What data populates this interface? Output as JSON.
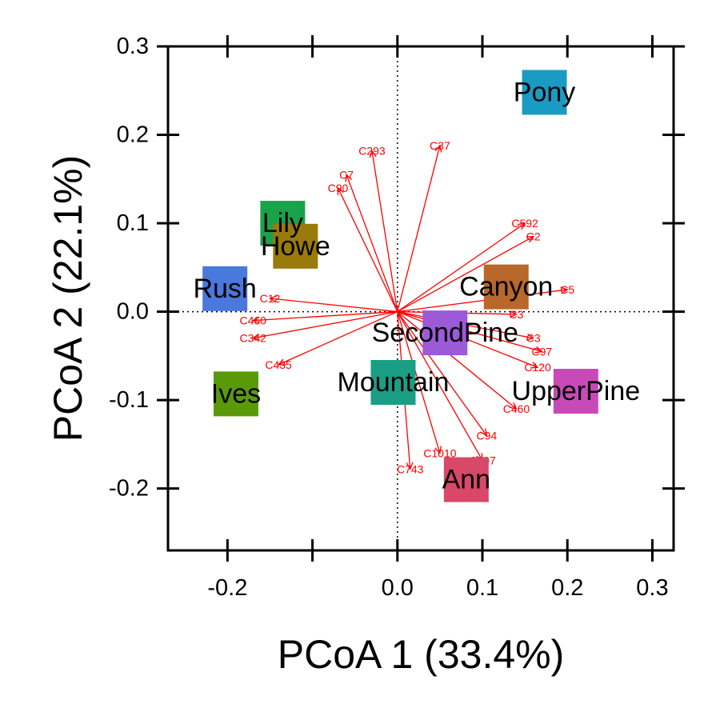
{
  "chart_data": {
    "type": "scatter",
    "title": "",
    "xlabel": "PCoA 1 (33.4%)",
    "ylabel": "PCoA 2 (22.1%)",
    "xlim": [
      -0.27,
      0.325
    ],
    "ylim": [
      -0.27,
      0.3
    ],
    "x_ticks": [
      -0.2,
      -0.1,
      0.0,
      0.1,
      0.2,
      0.3
    ],
    "x_tick_labels": [
      "-0.2",
      "",
      "0.0",
      "0.1",
      "0.2",
      "0.3"
    ],
    "y_ticks": [
      -0.2,
      -0.1,
      0.0,
      0.1,
      0.2,
      0.3
    ],
    "y_tick_labels": [
      "-0.2",
      "-0.1",
      "0.0",
      "0.1",
      "0.2",
      "0.3"
    ],
    "grid": false,
    "reference_lines": {
      "x": 0,
      "y": 0
    },
    "sites": [
      {
        "name": "Pony",
        "x": 0.173,
        "y": 0.248,
        "color": "#1a9bc4"
      },
      {
        "name": "Lily",
        "x": -0.135,
        "y": 0.1,
        "color": "#1aa24a"
      },
      {
        "name": "Howe",
        "x": -0.12,
        "y": 0.074,
        "color": "#9a7a0a"
      },
      {
        "name": "Rush",
        "x": -0.203,
        "y": 0.026,
        "color": "#4a78dc"
      },
      {
        "name": "Canyon",
        "x": 0.128,
        "y": 0.028,
        "color": "#b8682a"
      },
      {
        "name": "SecondPine",
        "x": 0.056,
        "y": -0.024,
        "color": "#9c5ad8"
      },
      {
        "name": "Mountain",
        "x": -0.005,
        "y": -0.08,
        "color": "#1a9e84"
      },
      {
        "name": "UpperPine",
        "x": 0.21,
        "y": -0.09,
        "color": "#c84ab8"
      },
      {
        "name": "Ives",
        "x": -0.19,
        "y": -0.093,
        "color": "#5a9a0a"
      },
      {
        "name": "Ann",
        "x": 0.081,
        "y": -0.19,
        "color": "#d84868"
      }
    ],
    "vectors": [
      {
        "label": "C293",
        "x": -0.03,
        "y": 0.182
      },
      {
        "label": "C37",
        "x": 0.05,
        "y": 0.188
      },
      {
        "label": "C7",
        "x": -0.06,
        "y": 0.155
      },
      {
        "label": "C90",
        "x": -0.07,
        "y": 0.14
      },
      {
        "label": "C592",
        "x": 0.15,
        "y": 0.1
      },
      {
        "label": "C2",
        "x": 0.16,
        "y": 0.085
      },
      {
        "label": "C5",
        "x": 0.2,
        "y": 0.025
      },
      {
        "label": "C3",
        "x": 0.14,
        "y": -0.003
      },
      {
        "label": "C3",
        "x": 0.16,
        "y": -0.03
      },
      {
        "label": "C97",
        "x": 0.17,
        "y": -0.045
      },
      {
        "label": "C120",
        "x": 0.165,
        "y": -0.063
      },
      {
        "label": "C460",
        "x": 0.14,
        "y": -0.11
      },
      {
        "label": "C94",
        "x": 0.105,
        "y": -0.14
      },
      {
        "label": "C307",
        "x": 0.1,
        "y": -0.168
      },
      {
        "label": "C1010",
        "x": 0.05,
        "y": -0.16
      },
      {
        "label": "C743",
        "x": 0.015,
        "y": -0.178
      },
      {
        "label": "C460",
        "x": -0.17,
        "y": -0.01
      },
      {
        "label": "C342",
        "x": -0.17,
        "y": -0.03
      },
      {
        "label": "C435",
        "x": -0.14,
        "y": -0.06
      },
      {
        "label": "C12",
        "x": -0.15,
        "y": 0.015
      }
    ]
  }
}
